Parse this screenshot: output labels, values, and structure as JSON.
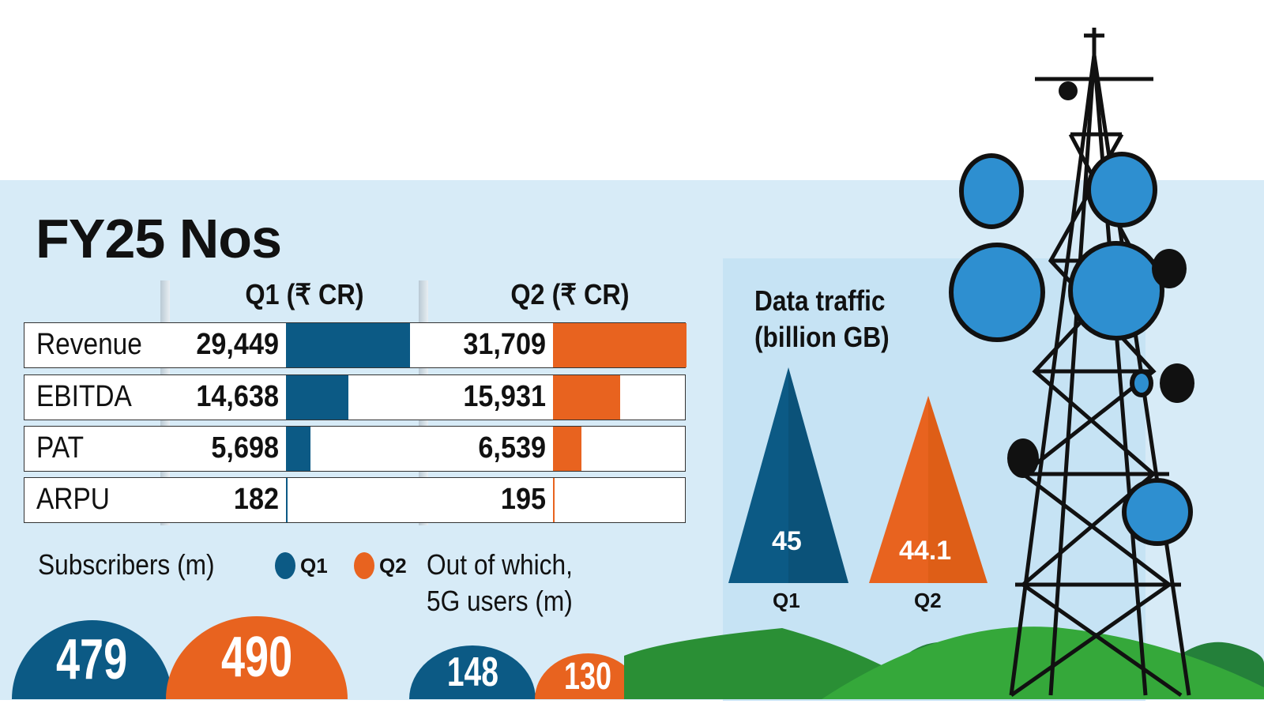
{
  "title": "FY25 Nos",
  "colors": {
    "q1": "#0c5a85",
    "q2": "#e8631f",
    "background": "#d7ebf7",
    "hills": "#2e9a3a"
  },
  "chart_data": [
    {
      "type": "bar",
      "title": "FY25 Nos",
      "columns": [
        "Q1 (₹ CR)",
        "Q2 (₹ CR)"
      ],
      "categories": [
        "Revenue",
        "EBITDA",
        "PAT",
        "ARPU"
      ],
      "series": [
        {
          "name": "Q1",
          "values": [
            29449,
            14638,
            5698,
            182
          ],
          "labels": [
            "29,449",
            "14,638",
            "5,698",
            "182"
          ]
        },
        {
          "name": "Q2",
          "values": [
            31709,
            15931,
            6539,
            195
          ],
          "labels": [
            "31,709",
            "15,931",
            "6,539",
            "195"
          ]
        }
      ]
    },
    {
      "type": "bar",
      "title": "Subscribers (m)",
      "legend": [
        "Q1",
        "Q2"
      ],
      "values": [
        479,
        490
      ]
    },
    {
      "type": "bar",
      "title": "Out of which, 5G users (m)",
      "values": [
        148,
        130
      ]
    },
    {
      "type": "bar",
      "title": "Data traffic (billion GB)",
      "categories": [
        "Q1",
        "Q2"
      ],
      "values": [
        45,
        44.1
      ],
      "labels": [
        "45",
        "44.1"
      ]
    }
  ],
  "subscribers": {
    "label": "Subscribers (m)",
    "legend_q1": "Q1",
    "legend_q2": "Q2",
    "q1": "479",
    "q2": "490"
  },
  "fiveg": {
    "label1": "Out of which,",
    "label2": "5G users (m)",
    "q1": "148",
    "q2": "130"
  },
  "traffic": {
    "title1": "Data traffic",
    "title2": "(billion GB)",
    "q1_label": "Q1",
    "q2_label": "Q2",
    "q1": "45",
    "q2": "44.1"
  }
}
